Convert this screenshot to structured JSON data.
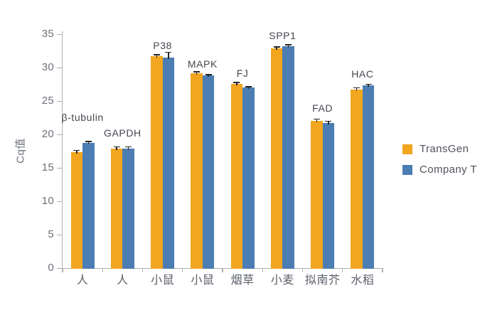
{
  "chart_data": {
    "type": "bar",
    "title": "",
    "xlabel": "",
    "ylabel": "Cq值",
    "ylim": [
      0,
      35
    ],
    "yticks": [
      0,
      5,
      10,
      15,
      20,
      25,
      30,
      35
    ],
    "grid": false,
    "legend_position": "right",
    "categories": [
      "人",
      "人",
      "小鼠",
      "小鼠",
      "烟草",
      "小麦",
      "拟南芥",
      "水稻"
    ],
    "bar_group_labels": [
      "β-tubulin",
      "GAPDH",
      "P38",
      "MAPK",
      "FJ",
      "SPP1",
      "FAD",
      "HAC"
    ],
    "series": [
      {
        "name": "TransGen",
        "color": "#F2A51F",
        "values": [
          17.4,
          18.0,
          31.8,
          29.3,
          27.7,
          33.0,
          22.1,
          26.8
        ],
        "errors": [
          0.3,
          0.25,
          0.2,
          0.15,
          0.15,
          0.2,
          0.3,
          0.3
        ]
      },
      {
        "name": "Company T",
        "color": "#4C7DB3",
        "values": [
          18.8,
          18.0,
          31.6,
          28.9,
          27.1,
          33.3,
          21.8,
          27.4
        ],
        "errors": [
          0.25,
          0.25,
          0.8,
          0.15,
          0.15,
          0.2,
          0.3,
          0.2
        ]
      }
    ],
    "label_dy": [
      36,
      22,
      15,
      13,
      15,
      15,
      18,
      16
    ]
  },
  "palette": {
    "axis": "#AFAFAF",
    "tick_text": "#6C7178",
    "category_text": "#5B6069",
    "bar_label_text": "#45484F",
    "legend_text": "#4E525B",
    "error_bar": "#262626",
    "background": "#FFFFFF"
  }
}
